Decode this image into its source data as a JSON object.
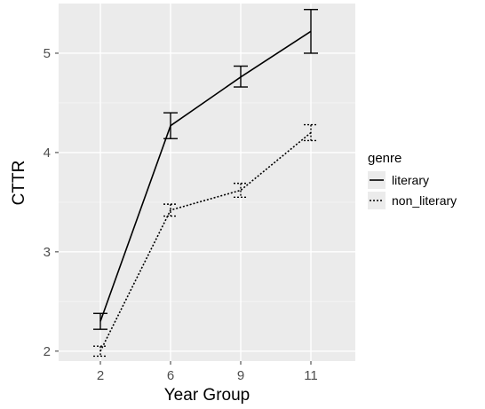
{
  "chart_data": {
    "type": "line",
    "categories": [
      "2",
      "6",
      "9",
      "11"
    ],
    "xlabel": "Year Group",
    "ylabel": "CTTR",
    "ylim": [
      1.9,
      5.5
    ],
    "yticks": [
      2,
      3,
      4,
      5
    ],
    "grid": true,
    "panel_background": "#ebebeb",
    "legend": {
      "title": "genre",
      "position": "right"
    },
    "series": [
      {
        "name": "literary",
        "line_style": "solid",
        "color": "#000000",
        "values": [
          2.3,
          4.27,
          4.76,
          5.22
        ],
        "error_low": [
          2.22,
          4.14,
          4.66,
          5.0
        ],
        "error_high": [
          2.38,
          4.4,
          4.87,
          5.44
        ]
      },
      {
        "name": "non_literary",
        "line_style": "dotted",
        "color": "#000000",
        "values": [
          2.0,
          3.42,
          3.62,
          4.2
        ],
        "error_low": [
          1.95,
          3.36,
          3.55,
          4.12
        ],
        "error_high": [
          2.05,
          3.48,
          3.69,
          4.28
        ]
      }
    ]
  }
}
